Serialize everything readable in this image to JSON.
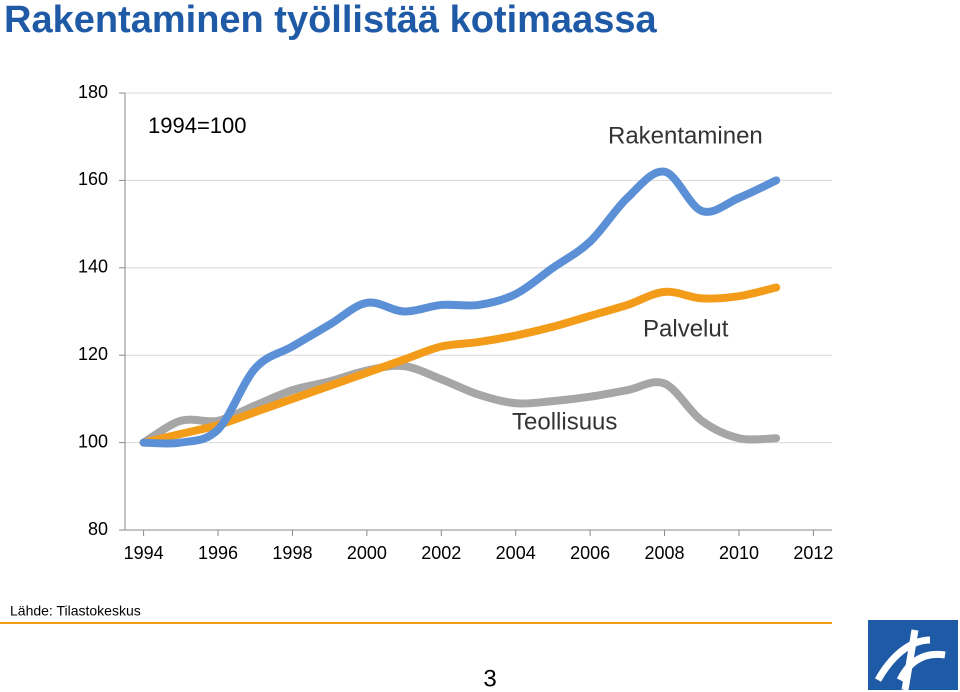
{
  "chart_data": {
    "type": "line",
    "title": "Rakentaminen työllistää kotimaassa",
    "annotations": [
      "1994=100",
      "Rakentaminen",
      "Palvelut",
      "Teollisuus"
    ],
    "source": "Lähde: Tilastokeskus",
    "page_number": "3",
    "x": [
      1994,
      1995,
      1996,
      1997,
      1998,
      1999,
      2000,
      2001,
      2002,
      2003,
      2004,
      2005,
      2006,
      2007,
      2008,
      2009,
      2010,
      2011
    ],
    "series": [
      {
        "name": "Rakentaminen",
        "color": "#5b8fd6",
        "values": [
          100,
          100,
          103,
          117,
          122,
          127,
          132,
          130,
          131.5,
          131.5,
          134,
          140,
          146,
          156,
          162,
          153,
          156,
          160
        ]
      },
      {
        "name": "Palvelut",
        "color": "#f39c1a",
        "values": [
          100,
          102,
          104,
          107,
          110,
          113,
          116,
          119,
          122,
          123,
          124.5,
          126.5,
          129,
          131.5,
          134.5,
          133,
          133.5,
          135.5
        ]
      },
      {
        "name": "Teollisuus",
        "color": "#a6a6a6",
        "values": [
          100,
          105,
          105,
          108.5,
          112,
          114,
          116.5,
          117.5,
          114.5,
          111,
          109,
          109.5,
          110.5,
          112,
          113.5,
          105,
          101,
          101
        ]
      }
    ],
    "xlim": [
      1993.5,
      2012.5
    ],
    "xticks": [
      1994,
      1996,
      1998,
      2000,
      2002,
      2004,
      2006,
      2008,
      2010,
      2012
    ],
    "ylim": [
      80,
      180
    ],
    "yticks": [
      80,
      100,
      120,
      140,
      160,
      180
    ],
    "grid": true
  }
}
